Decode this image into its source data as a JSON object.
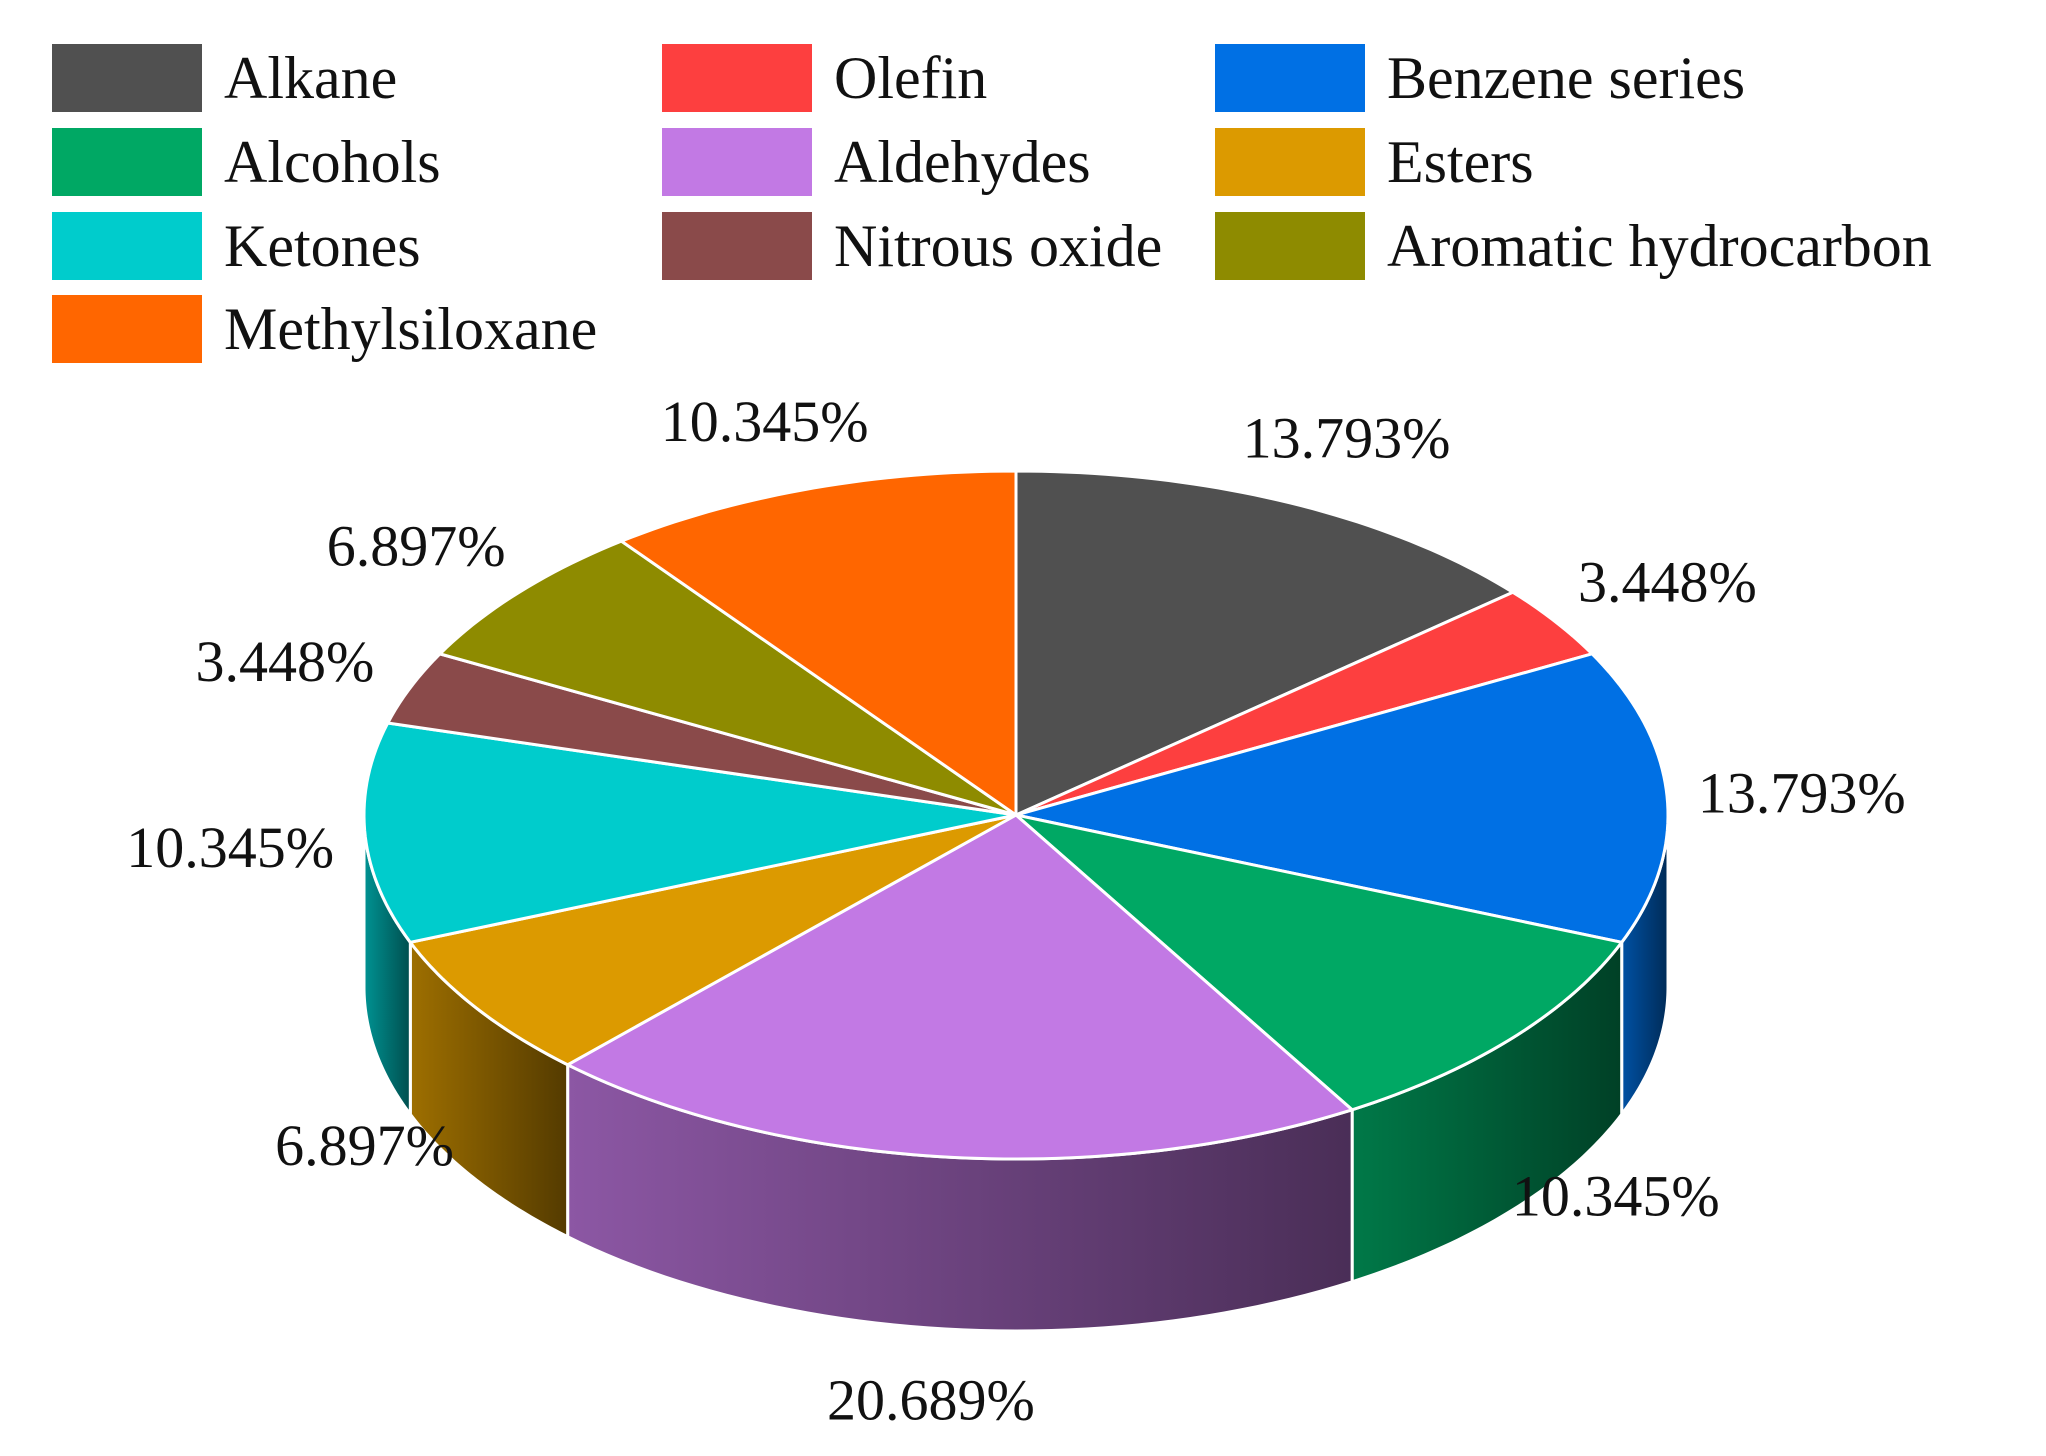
{
  "chart_data": {
    "type": "pie",
    "title": "",
    "legend_placement": "top",
    "slices": [
      {
        "label": "Alkane",
        "value": 13.793,
        "value_label": "13.793%",
        "color": "#505050"
      },
      {
        "label": "Olefin",
        "value": 3.448,
        "value_label": "3.448%",
        "color": "#fd3f3f"
      },
      {
        "label": "Benzene series",
        "value": 13.793,
        "value_label": "13.793%",
        "color": "#0070e4"
      },
      {
        "label": "Alcohols",
        "value": 10.345,
        "value_label": "10.345%",
        "color": "#00a864"
      },
      {
        "label": "Aldehydes",
        "value": 20.689,
        "value_label": "20.689%",
        "color": "#c279e4"
      },
      {
        "label": "Esters",
        "value": 6.897,
        "value_label": "6.897%",
        "color": "#dc9a00"
      },
      {
        "label": "Ketones",
        "value": 10.345,
        "value_label": "10.345%",
        "color": "#00cccc"
      },
      {
        "label": "Nitrous oxide",
        "value": 3.448,
        "value_label": "3.448%",
        "color": "#8a4a4a"
      },
      {
        "label": "Aromatic hydrocarbon",
        "value": 6.897,
        "value_label": "6.897%",
        "color": "#8e8b00"
      },
      {
        "label": "Methylsiloxane",
        "value": 10.345,
        "value_label": "10.345%",
        "color": "#ff6600"
      }
    ]
  }
}
